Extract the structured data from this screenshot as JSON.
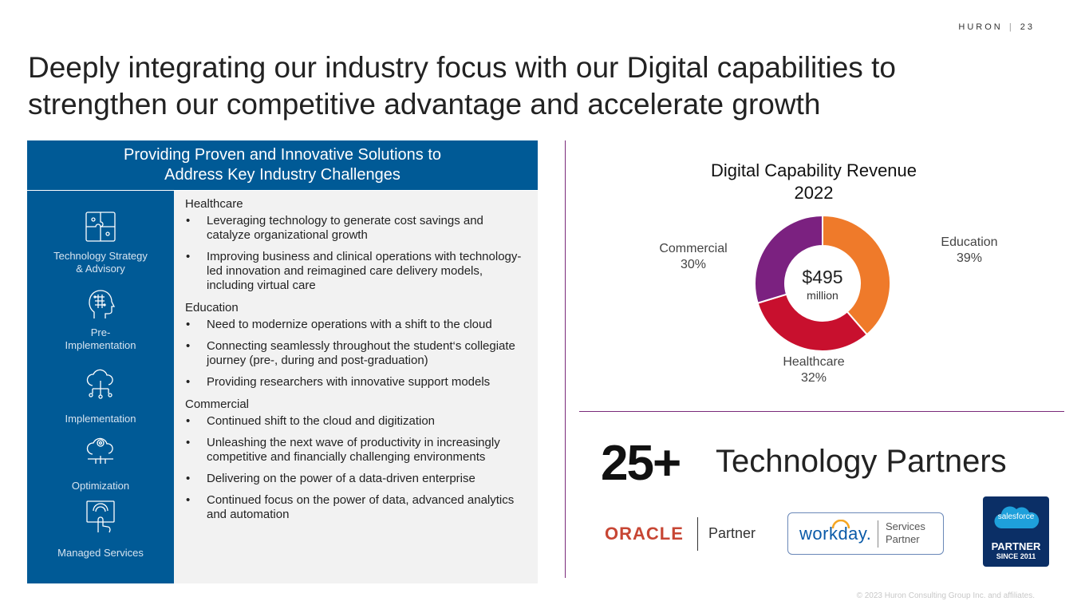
{
  "header": {
    "brand": "HURON",
    "separator": "|",
    "page": "23"
  },
  "title": "Deeply integrating our industry focus with our Digital capabilities to strengthen our competitive advantage and accelerate growth",
  "panel": {
    "heading_line1": "Providing Proven and Innovative Solutions to",
    "heading_line2": "Address Key Industry Challenges",
    "capabilities": [
      {
        "label": "Technology Strategy & Advisory",
        "icon": "puzzle-icon"
      },
      {
        "label": "Pre- Implementation",
        "icon": "head-circuit-icon"
      },
      {
        "label": "Implementation",
        "icon": "cloud-network-icon"
      },
      {
        "label": "Optimization",
        "icon": "cloud-gear-icon"
      },
      {
        "label": "Managed Services",
        "icon": "touch-screen-icon"
      }
    ],
    "sections": [
      {
        "heading": "Healthcare",
        "bullets": [
          "Leveraging technology to generate cost savings and catalyze organizational growth",
          "Improving business and clinical operations with technology-led innovation and reimagined care delivery models, including virtual care"
        ]
      },
      {
        "heading": "Education",
        "bullets": [
          "Need to modernize operations with a shift to the cloud",
          "Connecting seamlessly throughout the student‘s collegiate journey (pre-, during and post-graduation)",
          "Providing researchers with innovative support models"
        ]
      },
      {
        "heading": "Commercial",
        "bullets": [
          "Continued shift to the cloud and digitization",
          "Unleashing the next wave of productivity in increasingly competitive and financially challenging environments",
          "Delivering on the power of a data-driven enterprise",
          "Continued focus on the power of data, advanced analytics and automation"
        ]
      }
    ]
  },
  "chart_data": {
    "type": "pie",
    "title_line1": "Digital Capability Revenue",
    "title_line2": "2022",
    "center_value": "$495",
    "center_unit": "million",
    "slices": [
      {
        "label": "Education",
        "value": 39,
        "display": "39%",
        "color": "#ef7a2a"
      },
      {
        "label": "Healthcare",
        "value": 32,
        "display": "32%",
        "color": "#c8102e"
      },
      {
        "label": "Commercial",
        "value": 30,
        "display": "30%",
        "color": "#7b2180"
      }
    ]
  },
  "partners": {
    "count": "25+",
    "label": "Technology Partners",
    "oracle": {
      "name": "ORACLE",
      "tag": "Partner"
    },
    "workday": {
      "name": "workday.",
      "tag_line1": "Services",
      "tag_line2": "Partner"
    },
    "salesforce": {
      "name": "salesforce",
      "tag": "PARTNER",
      "since": "SINCE 2011"
    }
  },
  "footer": "© 2023 Huron Consulting Group Inc. and affiliates."
}
